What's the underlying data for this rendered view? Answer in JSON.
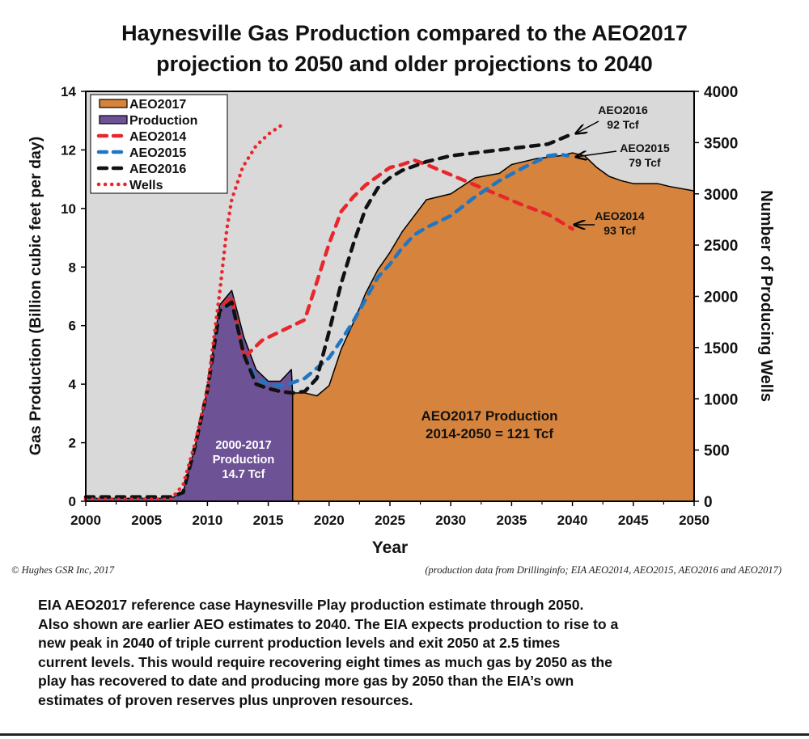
{
  "chart_data": {
    "type": "area",
    "title": [
      "Haynesville Gas Production compared to the AEO2017",
      "projection to 2050 and older projections to 2040"
    ],
    "xlabel": "Year",
    "ylabel": "Gas Production (Billion cubic feet per day)",
    "y2label": "Number of Producing Wells",
    "xlim": [
      2000,
      2050
    ],
    "ylim": [
      0,
      14
    ],
    "y2lim": [
      0,
      4000
    ],
    "xticks": [
      "2000",
      "2005",
      "2010",
      "2015",
      "2020",
      "2025",
      "2030",
      "2035",
      "2040",
      "2045",
      "2050"
    ],
    "yticks": [
      "0",
      "2",
      "4",
      "6",
      "8",
      "10",
      "12",
      "14"
    ],
    "y2ticks": [
      "0",
      "500",
      "1000",
      "1500",
      "2000",
      "2500",
      "3000",
      "3500",
      "4000"
    ],
    "grid": false,
    "legend_placement": "top-left",
    "colors": {
      "AEO2017": "#d6843d",
      "Production": "#6e5296",
      "AEO2014": "#e8262b",
      "AEO2015": "#2176c4",
      "AEO2016": "#111111",
      "Wells": "#e8262b",
      "plot_bg": "#d9d9d9"
    },
    "series": [
      {
        "name": "AEO2017",
        "style": "area",
        "x": [
          2017,
          2018,
          2019,
          2020,
          2021,
          2022,
          2023,
          2024,
          2025,
          2026,
          2027,
          2028,
          2030,
          2032,
          2034,
          2035,
          2037,
          2039,
          2040,
          2041,
          2042,
          2043,
          2044,
          2045,
          2047,
          2048,
          2050
        ],
        "values": [
          3.7,
          3.7,
          3.6,
          3.95,
          5.2,
          6.1,
          7.1,
          7.9,
          8.5,
          9.2,
          9.75,
          10.3,
          10.5,
          11.05,
          11.2,
          11.5,
          11.7,
          11.8,
          11.9,
          11.8,
          11.4,
          11.1,
          10.95,
          10.85,
          10.85,
          10.75,
          10.6
        ]
      },
      {
        "name": "Production",
        "style": "area",
        "x": [
          2000,
          2007,
          2008,
          2009,
          2010,
          2011,
          2012,
          2013,
          2014,
          2015,
          2016,
          2016.9,
          2017
        ],
        "values": [
          0.1,
          0.1,
          0.3,
          1.9,
          3.8,
          6.7,
          7.2,
          5.6,
          4.5,
          4.1,
          4.1,
          4.5,
          3.7
        ]
      },
      {
        "name": "AEO2014",
        "style": "dashed",
        "x": [
          2000,
          2007,
          2008,
          2009,
          2010,
          2011,
          2012,
          2013,
          2014.5,
          2016.5,
          2018,
          2019,
          2020,
          2021,
          2022,
          2023,
          2024,
          2025,
          2026,
          2027,
          2028,
          2030,
          2032,
          2034,
          2036,
          2038,
          2040
        ],
        "values": [
          0.1,
          0.1,
          0.3,
          1.9,
          3.8,
          6.6,
          7.0,
          4.9,
          5.5,
          5.9,
          6.2,
          7.5,
          8.8,
          9.9,
          10.4,
          10.8,
          11.1,
          11.4,
          11.5,
          11.65,
          11.5,
          11.15,
          10.8,
          10.45,
          10.1,
          9.8,
          9.3
        ]
      },
      {
        "name": "AEO2015",
        "style": "dashed",
        "x": [
          2000,
          2007,
          2008,
          2009,
          2010,
          2011,
          2012,
          2013,
          2014,
          2015,
          2016,
          2017,
          2018,
          2019,
          2020,
          2021,
          2022,
          2023,
          2024,
          2025,
          2026,
          2027,
          2028,
          2030,
          2032,
          2034,
          2036,
          2038,
          2039,
          2039.6
        ],
        "values": [
          0.1,
          0.1,
          0.3,
          1.9,
          3.8,
          6.5,
          6.8,
          5.0,
          4.2,
          4.0,
          3.95,
          4.05,
          4.2,
          4.55,
          4.9,
          5.5,
          6.15,
          6.9,
          7.65,
          8.1,
          8.65,
          9.1,
          9.35,
          9.75,
          10.4,
          10.95,
          11.4,
          11.8,
          11.85,
          11.8
        ]
      },
      {
        "name": "AEO2016",
        "style": "dashed",
        "x": [
          2000,
          2007,
          2008,
          2009,
          2010,
          2011,
          2012,
          2013,
          2014,
          2015,
          2016,
          2017,
          2018,
          2019,
          2020,
          2021,
          2022,
          2023,
          2024,
          2025,
          2026,
          2027,
          2028,
          2030,
          2032,
          2034,
          2036,
          2038,
          2040
        ],
        "values": [
          0.15,
          0.15,
          0.3,
          1.9,
          3.8,
          6.5,
          6.8,
          5.0,
          4.0,
          3.85,
          3.75,
          3.7,
          3.75,
          4.2,
          5.8,
          7.45,
          8.8,
          10.0,
          10.7,
          11.05,
          11.3,
          11.45,
          11.6,
          11.8,
          11.9,
          12.0,
          12.1,
          12.2,
          12.55
        ]
      },
      {
        "name": "Wells",
        "style": "dotted",
        "axis": "right",
        "x": [
          2000,
          2007,
          2008,
          2009,
          2010,
          2011,
          2011.6,
          2012,
          2012.9,
          2014,
          2015.1,
          2016.4
        ],
        "values": [
          20,
          20,
          160,
          575,
          1090,
          2030,
          2660,
          2945,
          3260,
          3470,
          3590,
          3695
        ]
      }
    ],
    "annotations": [
      {
        "lines": [
          "AEO2016",
          "92 Tcf"
        ]
      },
      {
        "lines": [
          "AEO2015",
          "79 Tcf"
        ]
      },
      {
        "lines": [
          "AEO2014",
          "93 Tcf"
        ]
      },
      {
        "lines": [
          "AEO2017 Production",
          "2014-2050 = 121 Tcf"
        ]
      },
      {
        "lines": [
          "2000-2017",
          "Production",
          "14.7 Tcf"
        ]
      }
    ]
  },
  "footer": {
    "copyright": "©  Hughes GSR Inc, 2017",
    "source": "(production data from Drillinginfo;  EIA AEO2014, AEO2015, AEO2016 and AEO2017)"
  },
  "caption": [
    "EIA AEO2017 reference case Haynesville Play production estimate through 2050.",
    "Also shown are earlier AEO estimates to 2040. The EIA expects production to rise to a",
    "new peak in 2040 of triple current production levels and exit 2050 at 2.5 times",
    "current levels. This would require recovering eight times as much gas by 2050 as the",
    "play has recovered to date and producing more gas by 2050 than the EIA’s own",
    "estimates of proven reserves plus unproven resources."
  ]
}
